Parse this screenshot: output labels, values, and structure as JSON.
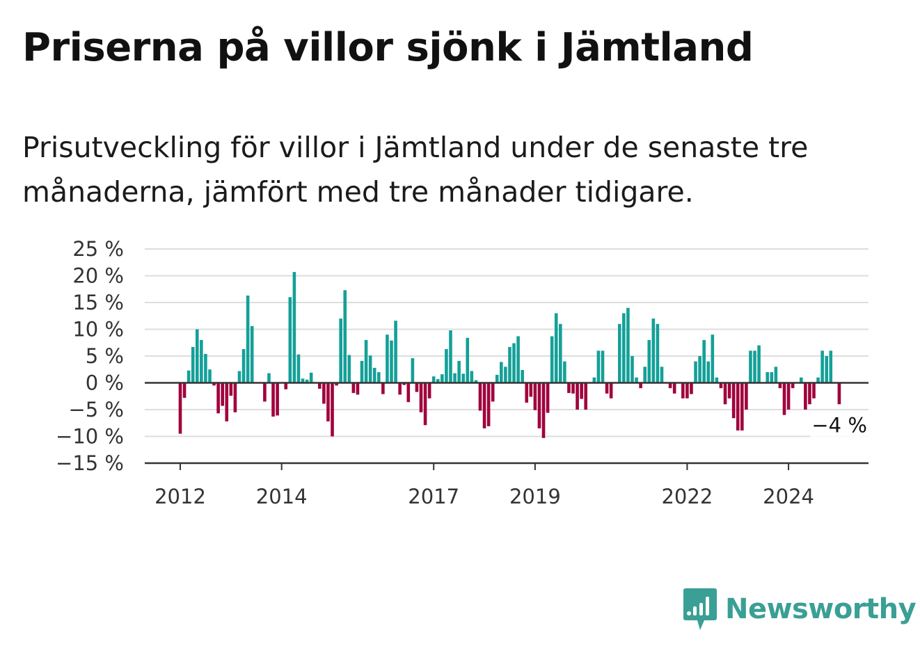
{
  "title": "Priserna på villor sjönk i Jämtland",
  "subtitle": "Prisutveckling för villor i Jämtland under de senaste tre månaderna, jämfört med tre månader tidigare.",
  "brand": {
    "name": "Newsworthy",
    "color": "#3a9f94",
    "icon": "newsworthy-logo-icon"
  },
  "colors": {
    "positive": "#14a098",
    "negative": "#a0003c",
    "grid": "#dddddd",
    "axis": "#333333"
  },
  "chart_data": {
    "type": "bar",
    "ylim": [
      -15,
      25
    ],
    "yticks": [
      25,
      20,
      15,
      10,
      5,
      0,
      -5,
      -10,
      -15
    ],
    "ytick_labels": [
      "25 %",
      "20 %",
      "15 %",
      "10 %",
      "5 %",
      "0 %",
      "−5 %",
      "−10 %",
      "−15 %"
    ],
    "xticks": [
      {
        "label": "2012",
        "index": 0
      },
      {
        "label": "2014",
        "index": 24
      },
      {
        "label": "2017",
        "index": 60
      },
      {
        "label": "2019",
        "index": 84
      },
      {
        "label": "2022",
        "index": 120
      },
      {
        "label": "2024",
        "index": 144
      }
    ],
    "start": "2012-01",
    "frequency": "monthly",
    "end_label": "−4 %",
    "grid": true,
    "values": [
      -9.5,
      -2.8,
      2.3,
      6.7,
      10.0,
      8.0,
      5.4,
      2.5,
      -0.5,
      -5.7,
      -4.3,
      -7.2,
      -2.4,
      -5.5,
      2.2,
      6.3,
      16.3,
      10.6,
      0.0,
      0.0,
      -3.5,
      1.8,
      -6.3,
      -6.1,
      0.0,
      -1.2,
      16.0,
      20.7,
      5.3,
      0.8,
      0.6,
      1.9,
      0.0,
      -1.1,
      -3.9,
      -7.2,
      -10.0,
      -0.5,
      12.0,
      17.3,
      5.2,
      -1.9,
      -2.2,
      4.1,
      8.0,
      5.1,
      2.8,
      2.0,
      -2.1,
      9.0,
      7.9,
      11.6,
      -2.2,
      -0.4,
      -3.6,
      4.6,
      -1.7,
      -5.5,
      -7.9,
      -2.9,
      1.2,
      0.7,
      1.6,
      6.3,
      9.8,
      1.8,
      4.1,
      1.7,
      8.4,
      2.2,
      0.5,
      -5.2,
      -8.5,
      -8.1,
      -3.5,
      1.5,
      3.9,
      3.0,
      6.7,
      7.4,
      8.7,
      2.4,
      -3.7,
      -2.6,
      -5.1,
      -8.5,
      -10.3,
      -5.6,
      8.7,
      13.0,
      11.0,
      4.0,
      -1.9,
      -2.0,
      -5.0,
      -3.0,
      -5.0,
      0.0,
      1.0,
      6.0,
      6.0,
      -2.0,
      -2.9,
      0.0,
      11.0,
      13.0,
      14.0,
      5.0,
      1.0,
      -1.0,
      3.0,
      8.0,
      12.0,
      11.0,
      3.0,
      0.0,
      -1.0,
      -2.0,
      0.0,
      -2.9,
      -2.9,
      -2.1,
      4.0,
      5.0,
      8.0,
      4.0,
      9.0,
      1.0,
      -1.0,
      -4.0,
      -2.9,
      -6.6,
      -8.9,
      -8.9,
      -5.0,
      6.0,
      6.0,
      7.0,
      0.0,
      2.0,
      2.0,
      3.0,
      -1.0,
      -6.0,
      -5.0,
      -1.0,
      0.0,
      1.0,
      -5.0,
      -4.0,
      -2.9,
      1.0,
      6.0,
      5.0,
      6.0,
      0.0,
      -4.0
    ]
  }
}
